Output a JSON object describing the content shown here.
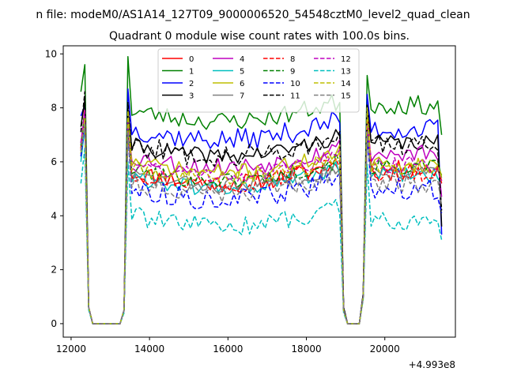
{
  "chart_data": {
    "type": "line",
    "suptitle": "n file: modeM0/AS1A14_127T09_9000006520_54548cztM0_level2_quad_clean",
    "title": "Quadrant 0 module wise count rates with 100.0s bins.",
    "xlabel": "",
    "ylabel": "",
    "x_offset_label": "+4.993e8",
    "xlim": [
      11800,
      21800
    ],
    "ylim": [
      -0.5,
      10.3
    ],
    "xticks": [
      12000,
      14000,
      16000,
      18000,
      20000
    ],
    "yticks": [
      0,
      2,
      4,
      6,
      8,
      10
    ],
    "x_segments": [
      {
        "start": 12250,
        "end": 13450,
        "step": 100
      },
      {
        "start": 13550,
        "end": 18850,
        "step": 100
      },
      {
        "start": 18950,
        "end": 19550,
        "step": 100
      },
      {
        "start": 19650,
        "end": 21450,
        "step": 100
      }
    ],
    "legend": {
      "placement": "top-center",
      "columns": 4
    },
    "series": [
      {
        "name": "0",
        "color": "#ff0000",
        "dash": "solid",
        "seg1": [
          6.4,
          8.0,
          0.6,
          0,
          0,
          0,
          0,
          0,
          0,
          0,
          0,
          0.5,
          7.6
        ],
        "seg3": [
          0.5,
          0,
          0,
          0,
          0,
          1.0,
          7.8
        ],
        "tail": [
          5.3
        ],
        "level": 5.6,
        "end_level": 5.7,
        "noise": 0.35,
        "seed": 11
      },
      {
        "name": "1",
        "color": "#008000",
        "dash": "solid",
        "seg1": [
          8.6,
          9.6,
          0.6,
          0,
          0,
          0,
          0,
          0,
          0,
          0,
          0,
          0.5,
          9.9
        ],
        "seg3": [
          0.6,
          0,
          0,
          0,
          0,
          1.1,
          9.2
        ],
        "tail": [
          7.0
        ],
        "level": 7.9,
        "end_level": 8.1,
        "noise": 0.35,
        "seed": 23
      },
      {
        "name": "2",
        "color": "#0000ff",
        "dash": "solid",
        "seg1": [
          7.7,
          8.1,
          0.6,
          0,
          0,
          0,
          0,
          0,
          0,
          0,
          0,
          0.5,
          8.7
        ],
        "seg3": [
          0.6,
          0,
          0,
          0,
          0,
          1.1,
          8.5
        ],
        "tail": [
          3.3
        ],
        "level": 7.2,
        "end_level": 7.2,
        "noise": 0.4,
        "seed": 37
      },
      {
        "name": "3",
        "color": "#000000",
        "dash": "solid",
        "seg1": [
          7.3,
          8.3,
          0.6,
          0,
          0,
          0,
          0,
          0,
          0,
          0,
          0,
          0.5,
          8.0
        ],
        "seg3": [
          0.6,
          0,
          0,
          0,
          0,
          1.1,
          8.1
        ],
        "tail": [
          3.6
        ],
        "level": 6.6,
        "end_level": 6.7,
        "noise": 0.3,
        "seed": 41
      },
      {
        "name": "4",
        "color": "#bf00bf",
        "dash": "solid",
        "seg1": [
          6.7,
          7.7,
          0.6,
          0,
          0,
          0,
          0,
          0,
          0,
          0,
          0,
          0.5,
          7.5
        ],
        "seg3": [
          0.5,
          0,
          0,
          0,
          0,
          1.0,
          7.3
        ],
        "tail": [
          4.7
        ],
        "level": 6.2,
        "end_level": 6.3,
        "noise": 0.35,
        "seed": 53
      },
      {
        "name": "5",
        "color": "#00bfbf",
        "dash": "solid",
        "seg1": [
          6.0,
          7.3,
          0.6,
          0,
          0,
          0,
          0,
          0,
          0,
          0,
          0,
          0.5,
          7.3
        ],
        "seg3": [
          0.5,
          0,
          0,
          0,
          0,
          1.0,
          7.0
        ],
        "tail": [
          5.2
        ],
        "level": 5.4,
        "end_level": 5.5,
        "noise": 0.3,
        "seed": 61
      },
      {
        "name": "6",
        "color": "#bfbf00",
        "dash": "solid",
        "seg1": [
          6.3,
          7.6,
          0.6,
          0,
          0,
          0,
          0,
          0,
          0,
          0,
          0,
          0.5,
          7.7
        ],
        "seg3": [
          0.5,
          0,
          0,
          0,
          0,
          1.0,
          7.6
        ],
        "tail": [
          5.5
        ],
        "level": 6.0,
        "end_level": 5.9,
        "noise": 0.3,
        "seed": 71
      },
      {
        "name": "7",
        "color": "#808080",
        "dash": "solid",
        "seg1": [
          6.5,
          7.5,
          0.6,
          0,
          0,
          0,
          0,
          0,
          0,
          0,
          0,
          0.5,
          7.2
        ],
        "seg3": [
          0.5,
          0,
          0,
          0,
          0,
          1.0,
          7.1
        ],
        "tail": [
          5.4
        ],
        "level": 5.5,
        "end_level": 5.6,
        "noise": 0.3,
        "seed": 83
      },
      {
        "name": "8",
        "color": "#ff0000",
        "dash": "dashed",
        "seg1": [
          6.5,
          7.9,
          0.6,
          0,
          0,
          0,
          0,
          0,
          0,
          0,
          0,
          0.5,
          7.4
        ],
        "seg3": [
          0.5,
          0,
          0,
          0,
          0,
          1.0,
          7.5
        ],
        "tail": [
          5.2
        ],
        "level": 5.6,
        "end_level": 5.6,
        "noise": 0.35,
        "seed": 97
      },
      {
        "name": "9",
        "color": "#008000",
        "dash": "dashed",
        "seg1": [
          6.6,
          7.8,
          0.6,
          0,
          0,
          0,
          0,
          0,
          0,
          0,
          0,
          0.5,
          7.6
        ],
        "seg3": [
          0.5,
          0,
          0,
          0,
          0,
          1.0,
          7.7
        ],
        "tail": [
          5.4
        ],
        "level": 5.7,
        "end_level": 5.8,
        "noise": 0.3,
        "seed": 101
      },
      {
        "name": "10",
        "color": "#0000ff",
        "dash": "dashed",
        "seg1": [
          6.2,
          7.4,
          0.6,
          0,
          0,
          0,
          0,
          0,
          0,
          0,
          0,
          0.5,
          7.0
        ],
        "seg3": [
          0.5,
          0,
          0,
          0,
          0,
          1.0,
          7.0
        ],
        "tail": [
          4.1
        ],
        "level": 5.0,
        "end_level": 5.0,
        "noise": 0.4,
        "seed": 113
      },
      {
        "name": "11",
        "color": "#000000",
        "dash": "dashed",
        "seg1": [
          7.1,
          8.6,
          0.6,
          0,
          0,
          0,
          0,
          0,
          0,
          0,
          0,
          0.5,
          8.2
        ],
        "seg3": [
          0.6,
          0,
          0,
          0,
          0,
          1.1,
          8.1
        ],
        "tail": [
          4.2
        ],
        "level": 6.6,
        "end_level": 6.6,
        "noise": 0.4,
        "seed": 127
      },
      {
        "name": "12",
        "color": "#bf00bf",
        "dash": "dashed",
        "seg1": [
          6.7,
          7.9,
          0.6,
          0,
          0,
          0,
          0,
          0,
          0,
          0,
          0,
          0.5,
          7.5
        ],
        "seg3": [
          0.5,
          0,
          0,
          0,
          0,
          1.0,
          7.4
        ],
        "tail": [
          5.3
        ],
        "level": 5.9,
        "end_level": 5.9,
        "noise": 0.3,
        "seed": 131
      },
      {
        "name": "13",
        "color": "#00bfbf",
        "dash": "dashed",
        "seg1": [
          5.2,
          6.5,
          0.5,
          0,
          0,
          0,
          0,
          0,
          0,
          0,
          0,
          0.4,
          6.0
        ],
        "seg3": [
          0.4,
          0,
          0,
          0,
          0,
          0.9,
          5.9
        ],
        "tail": [
          3.1
        ],
        "level": 4.0,
        "end_level": 3.8,
        "noise": 0.35,
        "seed": 139
      },
      {
        "name": "14",
        "color": "#bfbf00",
        "dash": "dashed",
        "seg1": [
          6.4,
          7.6,
          0.6,
          0,
          0,
          0,
          0,
          0,
          0,
          0,
          0,
          0.5,
          7.9
        ],
        "seg3": [
          0.5,
          0,
          0,
          0,
          0,
          1.0,
          8.0
        ],
        "tail": [
          5.4
        ],
        "level": 5.8,
        "end_level": 5.8,
        "noise": 0.3,
        "seed": 149
      },
      {
        "name": "15",
        "color": "#808080",
        "dash": "dashed",
        "seg1": [
          6.4,
          7.4,
          0.6,
          0,
          0,
          0,
          0,
          0,
          0,
          0,
          0,
          0.5,
          7.1
        ],
        "seg3": [
          0.5,
          0,
          0,
          0,
          0,
          1.0,
          7.1
        ],
        "tail": [
          4.4
        ],
        "level": 5.2,
        "end_level": 5.2,
        "noise": 0.35,
        "seed": 151
      }
    ]
  }
}
